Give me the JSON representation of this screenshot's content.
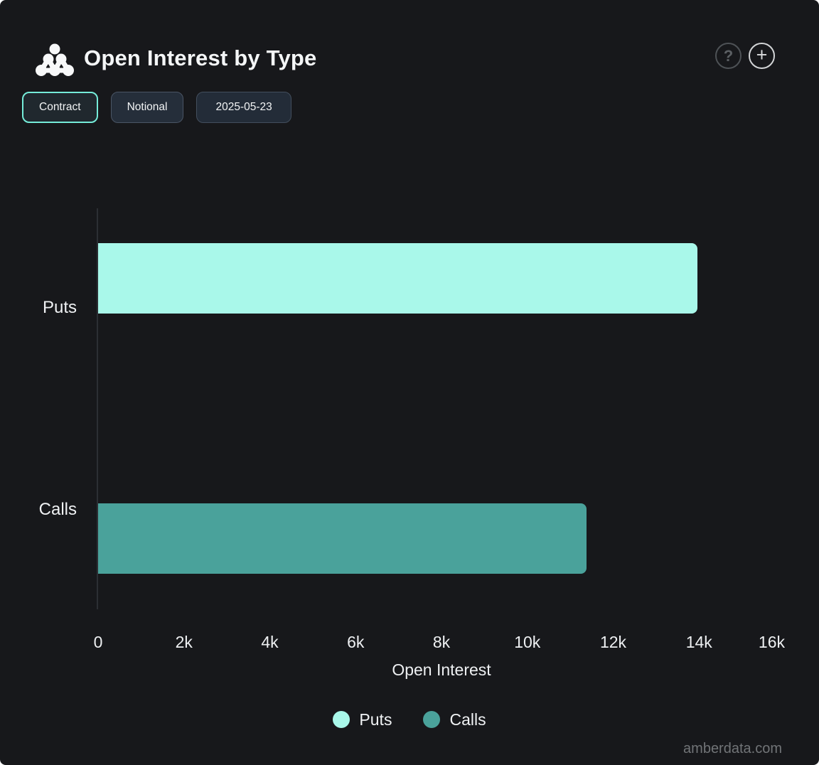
{
  "header": {
    "title": "Open Interest by Type",
    "help_label": "?",
    "add_label": "+"
  },
  "controls": {
    "contract_label": "Contract",
    "notional_label": "Notional",
    "date_label": "2025-05-23"
  },
  "colors": {
    "background": "#17181b",
    "accent_border": "#75ecd9",
    "puts": "#a9f8ea",
    "calls": "#4aa29b"
  },
  "watermark": "amberdata.com",
  "chart_data": {
    "type": "bar",
    "orientation": "horizontal",
    "title": "Open Interest by Type",
    "categories": [
      "Puts",
      "Calls"
    ],
    "values": [
      13970,
      11380
    ],
    "bar_colors": [
      "#a9f8ea",
      "#4aa29b"
    ],
    "xlabel": "Open Interest",
    "ylabel": "",
    "xlim": [
      0,
      16000
    ],
    "x_ticks": [
      {
        "label": "0",
        "value": 0
      },
      {
        "label": "2k",
        "value": 2000
      },
      {
        "label": "4k",
        "value": 4000
      },
      {
        "label": "6k",
        "value": 6000
      },
      {
        "label": "8k",
        "value": 8000
      },
      {
        "label": "10k",
        "value": 10000
      },
      {
        "label": "12k",
        "value": 12000
      },
      {
        "label": "14k",
        "value": 14000
      },
      {
        "label": "16k",
        "value": 16000
      }
    ],
    "grid": false,
    "legend_position": "bottom",
    "legend": [
      {
        "label": "Puts",
        "color": "#a9f8ea"
      },
      {
        "label": "Calls",
        "color": "#4aa29b"
      }
    ]
  }
}
